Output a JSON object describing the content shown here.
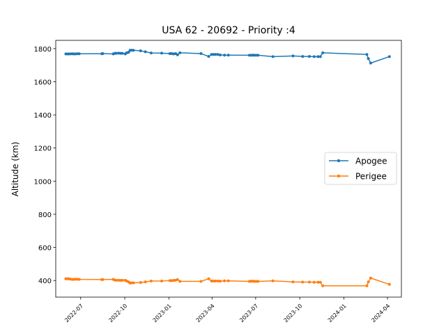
{
  "chart_data": {
    "type": "line",
    "title": "USA 62 - 20692 - Priority :4",
    "xlabel": "",
    "ylabel": "Altitude (km)",
    "xlim": [
      "2022-05-10",
      "2024-04-30"
    ],
    "ylim": [
      300,
      1850
    ],
    "yticks": [
      400,
      600,
      800,
      1000,
      1200,
      1400,
      1600,
      1800
    ],
    "xticks": [
      "2022-07",
      "2022-10",
      "2023-01",
      "2023-04",
      "2023-07",
      "2023-10",
      "2024-01",
      "2024-04"
    ],
    "legend_position": "center-right",
    "grid": false,
    "x": [
      "2022-05-31",
      "2022-06-03",
      "2022-06-06",
      "2022-06-09",
      "2022-06-13",
      "2022-06-16",
      "2022-06-20",
      "2022-06-24",
      "2022-06-28",
      "2022-08-14",
      "2022-08-16",
      "2022-09-07",
      "2022-09-10",
      "2022-09-13",
      "2022-09-18",
      "2022-09-22",
      "2022-09-26",
      "2022-10-02",
      "2022-10-05",
      "2022-10-09",
      "2022-10-12",
      "2022-10-15",
      "2022-10-19",
      "2022-11-03",
      "2022-11-13",
      "2022-11-25",
      "2022-12-17",
      "2023-01-03",
      "2023-01-07",
      "2023-01-11",
      "2023-01-15",
      "2023-01-19",
      "2023-01-24",
      "2023-03-09",
      "2023-03-25",
      "2023-03-31",
      "2023-04-04",
      "2023-04-08",
      "2023-04-13",
      "2023-04-18",
      "2023-04-27",
      "2023-05-05",
      "2023-06-18",
      "2023-06-22",
      "2023-06-25",
      "2023-06-28",
      "2023-07-02",
      "2023-07-06",
      "2023-08-06",
      "2023-09-17",
      "2023-10-07",
      "2023-10-21",
      "2023-10-31",
      "2023-11-08",
      "2023-11-13",
      "2023-11-18",
      "2024-02-18",
      "2024-02-21",
      "2024-02-26",
      "2024-04-05"
    ],
    "series": [
      {
        "name": "Apogee",
        "color": "#1f77b4",
        "values": [
          1768,
          1768,
          1768,
          1768,
          1769,
          1768,
          1768,
          1769,
          1769,
          1769,
          1770,
          1768,
          1772,
          1772,
          1773,
          1772,
          1772,
          1768,
          1775,
          1778,
          1790,
          1790,
          1790,
          1787,
          1781,
          1774,
          1773,
          1770,
          1770,
          1768,
          1770,
          1763,
          1775,
          1770,
          1753,
          1765,
          1765,
          1765,
          1765,
          1762,
          1761,
          1761,
          1760,
          1760,
          1761,
          1760,
          1760,
          1760,
          1752,
          1756,
          1753,
          1753,
          1752,
          1752,
          1752,
          1775,
          1765,
          1740,
          1713,
          1752
        ]
      },
      {
        "name": "Perigee",
        "color": "#ff7f0e",
        "values": [
          411,
          411,
          411,
          409,
          407,
          407,
          408,
          408,
          407,
          406,
          406,
          407,
          403,
          402,
          402,
          401,
          402,
          402,
          397,
          392,
          385,
          386,
          386,
          388,
          392,
          397,
          397,
          400,
          400,
          401,
          402,
          406,
          395,
          395,
          411,
          397,
          397,
          397,
          397,
          396,
          398,
          398,
          395,
          396,
          396,
          395,
          395,
          395,
          398,
          392,
          391,
          391,
          390,
          390,
          390,
          368,
          368,
          392,
          415,
          377
        ]
      }
    ]
  }
}
